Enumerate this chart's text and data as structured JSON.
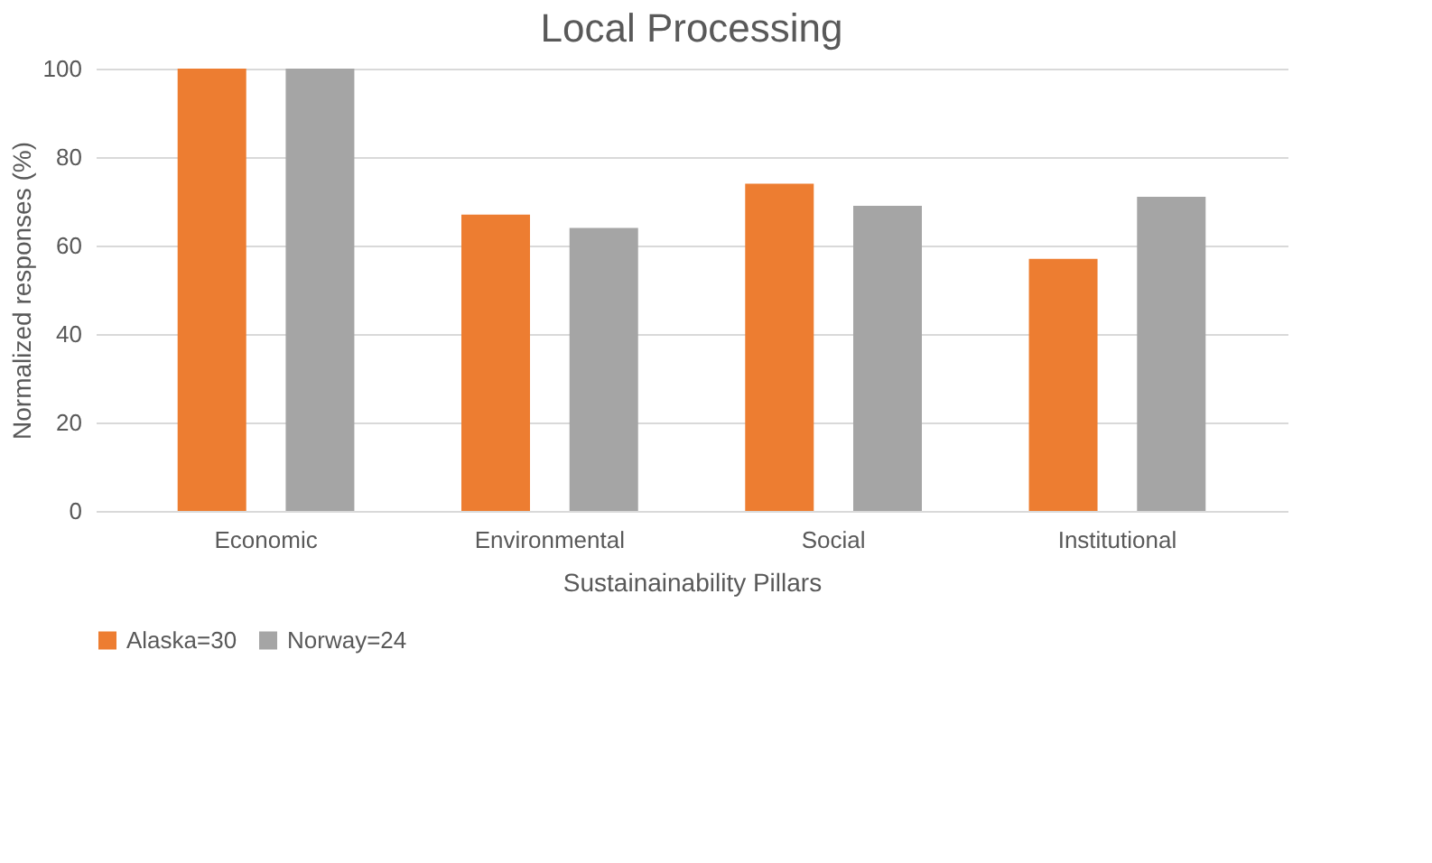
{
  "chart_data": {
    "type": "bar",
    "title": "Local Processing",
    "xlabel": "Sustainainability Pillars",
    "ylabel": "Normalized responses (%)",
    "categories": [
      "Economic",
      "Environmental",
      "Social",
      "Institutional"
    ],
    "series": [
      {
        "name": "Alaska=30",
        "color": "#ed7d31",
        "values": [
          100,
          67,
          74,
          57
        ]
      },
      {
        "name": "Norway=24",
        "color": "#a5a5a5",
        "values": [
          100,
          64,
          69,
          71
        ]
      }
    ],
    "ylim": [
      0,
      100
    ],
    "yticks": [
      0,
      20,
      40,
      60,
      80,
      100
    ],
    "grid": "y",
    "legend": "bottom"
  }
}
